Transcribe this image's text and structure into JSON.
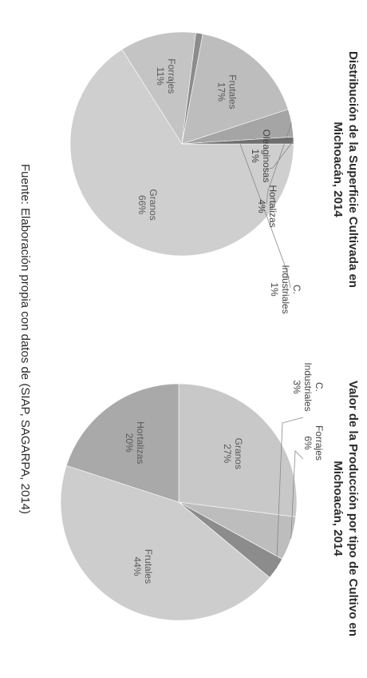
{
  "chart_data": [
    {
      "type": "pie",
      "title_lines": [
        "Distribución de la Superficie Cultivada en",
        "Michoacán, 2014"
      ],
      "slices": [
        {
          "label": "Granos",
          "value": 66,
          "text": "66%",
          "color": "#cfcfcf"
        },
        {
          "label": "Forrajes",
          "value": 11,
          "text": "11%",
          "color": "#c4c4c4"
        },
        {
          "label": "C. Industriales",
          "value": 1,
          "text": "1%",
          "color": "#8c8c8c"
        },
        {
          "label": "Frutales",
          "value": 17,
          "text": "17%",
          "color": "#bdbdbd"
        },
        {
          "label": "Hortalizas",
          "value": 4,
          "text": "4%",
          "color": "#a5a5a5"
        },
        {
          "label": "Oleaginosas",
          "value": 1,
          "text": "1%",
          "color": "#6f6f6f"
        }
      ]
    },
    {
      "type": "pie",
      "title_lines": [
        "Valor de la Producción por tipo de Cultivo en",
        "Michoacán, 2014"
      ],
      "slices": [
        {
          "label": "Granos",
          "value": 27,
          "text": "27%",
          "color": "#c8c8c8"
        },
        {
          "label": "Forrajes",
          "value": 6,
          "text": "6%",
          "color": "#bdbdbd"
        },
        {
          "label": "C. Industriales",
          "value": 3,
          "text": "3%",
          "color": "#8c8c8c"
        },
        {
          "label": "Frutales",
          "value": 44,
          "text": "44%",
          "color": "#cdcdcd"
        },
        {
          "label": "Hortalizas",
          "value": 20,
          "text": "20%",
          "color": "#a9a9a9"
        }
      ]
    }
  ],
  "footer": "Fuente: Elaboración propia con datos de (SIAP, SAGARPA, 2014)"
}
